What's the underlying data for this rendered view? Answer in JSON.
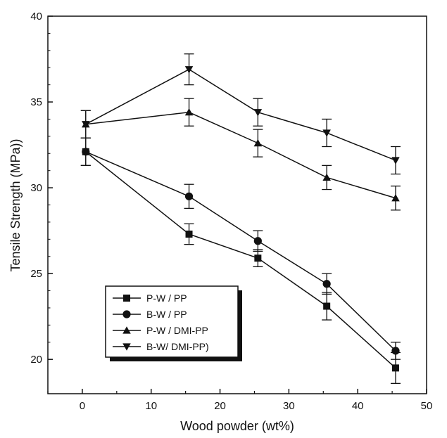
{
  "chart_data": {
    "type": "line",
    "title": "",
    "xlabel": "Wood powder (wt%)",
    "ylabel": "Tensile Strength (MPa))",
    "xlim": [
      -5,
      50
    ],
    "ylim": [
      18,
      40
    ],
    "xticks": [
      0,
      10,
      20,
      30,
      40,
      50
    ],
    "yticks": [
      20,
      25,
      30,
      35,
      40
    ],
    "grid": false,
    "legend_position": "bottom-left",
    "series": [
      {
        "name": "P-W / PP",
        "marker": "square",
        "x": [
          0.5,
          15.5,
          25.5,
          35.5,
          45.5
        ],
        "y": [
          32.1,
          27.3,
          25.9,
          23.1,
          19.5
        ],
        "err": [
          0.8,
          0.6,
          0.5,
          0.8,
          0.9
        ]
      },
      {
        "name": "B-W / PP",
        "marker": "circle",
        "x": [
          0.5,
          15.5,
          25.5,
          35.5,
          45.5
        ],
        "y": [
          32.1,
          29.5,
          26.9,
          24.4,
          20.5
        ],
        "err": [
          0.8,
          0.7,
          0.6,
          0.6,
          0.5
        ]
      },
      {
        "name": "P-W / DMI-PP",
        "marker": "triangle-up",
        "x": [
          0.5,
          15.5,
          25.5,
          35.5,
          45.5
        ],
        "y": [
          33.7,
          34.4,
          32.6,
          30.6,
          29.4
        ],
        "err": [
          0.8,
          0.8,
          0.8,
          0.7,
          0.7
        ]
      },
      {
        "name": "B-W/ DMI-PP)",
        "marker": "triangle-down",
        "x": [
          0.5,
          15.5,
          25.5,
          35.5,
          45.5
        ],
        "y": [
          33.7,
          36.9,
          34.4,
          33.2,
          31.6
        ],
        "err": [
          0.8,
          0.9,
          0.8,
          0.8,
          0.8
        ]
      }
    ]
  }
}
